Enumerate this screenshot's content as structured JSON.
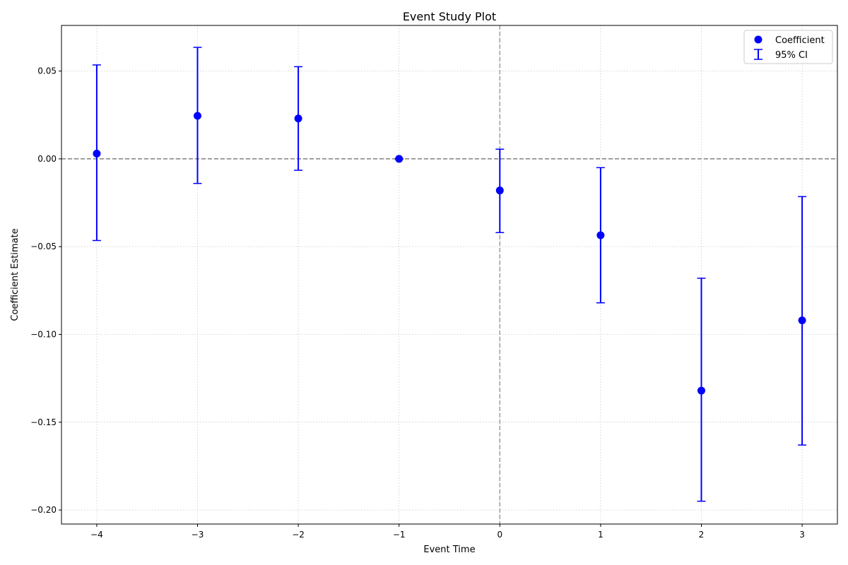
{
  "chart_data": {
    "type": "scatter",
    "title": "Event Study Plot",
    "xlabel": "Event Time",
    "ylabel": "Coefficient Estimate",
    "xlim": [
      -4.35,
      3.35
    ],
    "ylim": [
      -0.208,
      0.076
    ],
    "x_ticks": [
      -4,
      -3,
      -2,
      -1,
      0,
      1,
      2,
      3
    ],
    "x_tick_labels": [
      "−4",
      "−3",
      "−2",
      "−1",
      "0",
      "1",
      "2",
      "3"
    ],
    "y_ticks": [
      -0.2,
      -0.15,
      -0.1,
      -0.05,
      0.0,
      0.05
    ],
    "y_tick_labels": [
      "−0.20",
      "−0.15",
      "−0.10",
      "−0.05",
      "0.00",
      "0.05"
    ],
    "grid": true,
    "reference_lines": {
      "horizontal": 0,
      "vertical": 0,
      "color": "#808080",
      "style": "dashed"
    },
    "legend_position": "top-right",
    "series": [
      {
        "name": "Coefficient",
        "color": "#0000ff",
        "x": [
          -4,
          -3,
          -2,
          -1,
          0,
          1,
          2,
          3
        ],
        "y": [
          0.003,
          0.0245,
          0.023,
          0.0,
          -0.018,
          -0.0435,
          -0.132,
          -0.092
        ]
      },
      {
        "name": "95% CI",
        "color": "#0000ff",
        "x": [
          -4,
          -3,
          -2,
          -1,
          0,
          1,
          2,
          3
        ],
        "lower": [
          -0.0465,
          -0.014,
          -0.0065,
          0.0,
          -0.042,
          -0.082,
          -0.195,
          -0.163
        ],
        "upper": [
          0.0535,
          0.0635,
          0.0525,
          0.0,
          0.0055,
          -0.005,
          -0.068,
          -0.0215
        ]
      }
    ]
  }
}
